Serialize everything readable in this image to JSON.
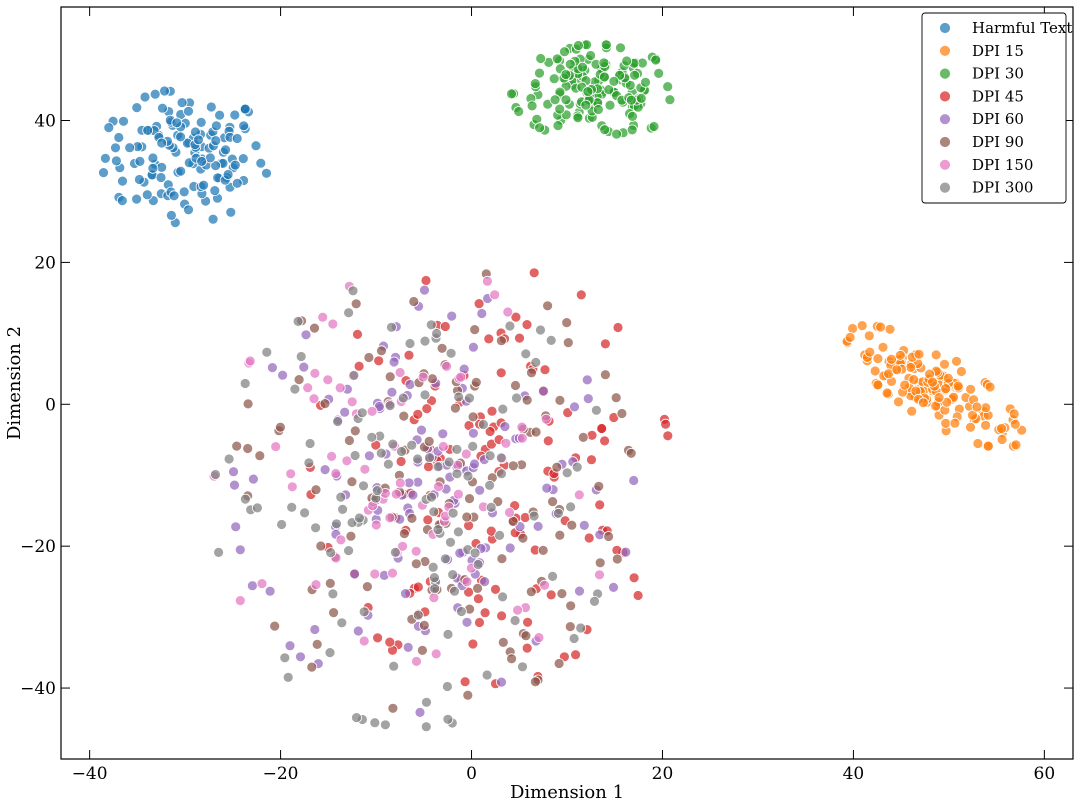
{
  "chart_data": {
    "type": "scatter",
    "title": "",
    "xlabel": "Dimension 1",
    "ylabel": "Dimension 2",
    "xlim": [
      -43,
      63
    ],
    "ylim": [
      -50,
      56
    ],
    "xticks": [
      -40,
      -20,
      0,
      20,
      40,
      60
    ],
    "yticks": [
      -40,
      -20,
      0,
      20,
      40
    ],
    "legend_position": "top-right",
    "grid": false,
    "series": [
      {
        "name": "Harmful Text",
        "color": "#1f77b4",
        "center": [
          -30,
          35
        ],
        "spread": [
          4.2,
          4.5
        ],
        "count": 140
      },
      {
        "name": "DPI 15",
        "color": "#ff7f0e",
        "center": [
          48.5,
          2.5
        ],
        "spread": [
          4.5,
          4.0
        ],
        "count": 150
      },
      {
        "name": "DPI 30",
        "color": "#2ca02c",
        "center": [
          13,
          44
        ],
        "spread": [
          4.2,
          3.2
        ],
        "count": 160
      },
      {
        "name": "DPI 45",
        "color": "#d62728",
        "center": [
          2,
          -10
        ],
        "spread": [
          9,
          14
        ],
        "count": 130
      },
      {
        "name": "DPI 60",
        "color": "#9467bd",
        "center": [
          -4,
          -12
        ],
        "spread": [
          10,
          15
        ],
        "count": 130
      },
      {
        "name": "DPI 90",
        "color": "#8c564b",
        "center": [
          -4,
          -12
        ],
        "spread": [
          10,
          15
        ],
        "count": 130
      },
      {
        "name": "DPI 150",
        "color": "#e377c2",
        "center": [
          -6,
          -12
        ],
        "spread": [
          10,
          15
        ],
        "count": 80
      },
      {
        "name": "DPI 300",
        "color": "#7f7f7f",
        "center": [
          -6,
          -14
        ],
        "spread": [
          10,
          15
        ],
        "count": 130
      }
    ]
  }
}
